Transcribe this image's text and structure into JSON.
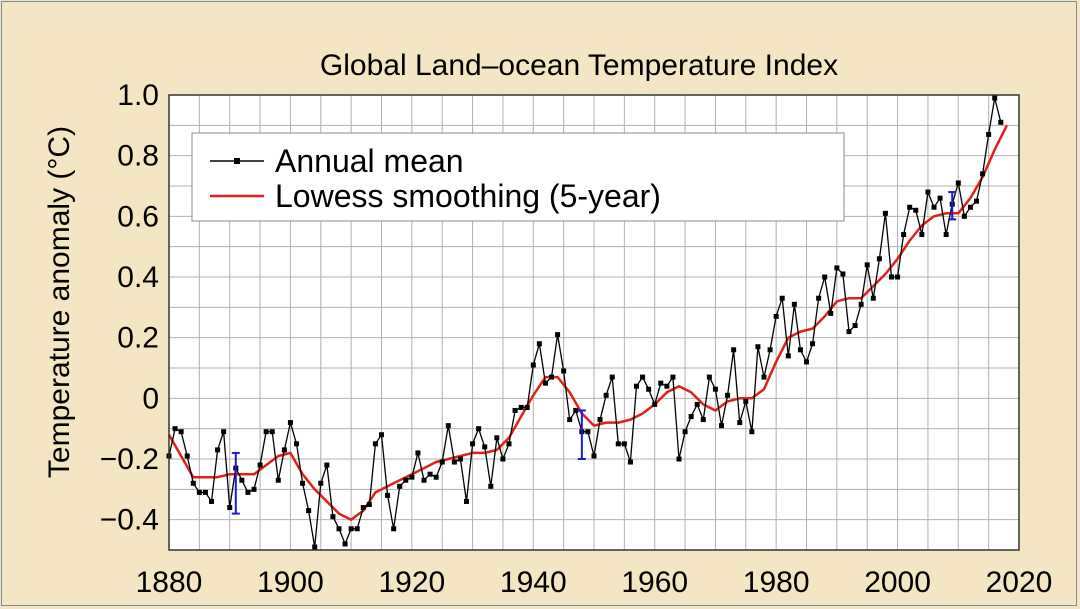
{
  "chart_data": {
    "type": "line",
    "title": "Global Land–ocean Temperature Index",
    "xlabel": "",
    "ylabel": "Temperature anomaly (°C)",
    "xlim": [
      1880,
      2020
    ],
    "ylim": [
      -0.5,
      1.0
    ],
    "xticks": [
      1880,
      1900,
      1920,
      1940,
      1960,
      1980,
      2000,
      2020
    ],
    "yticks": [
      -0.4,
      -0.2,
      0,
      0.2,
      0.4,
      0.6,
      0.8,
      1.0
    ],
    "ytick_labels": [
      "−0.4",
      "−0.2",
      "0",
      "0.2",
      "0.4",
      "0.6",
      "0.8",
      "1.0"
    ],
    "grid": true,
    "legend_position": "top-left",
    "colors": {
      "background": "#f5e6c3",
      "plot_background": "#ffffff",
      "grid": "#b0b0b0",
      "annual": "#000000",
      "smooth": "#e0201b",
      "error_bars": "#1a1adb"
    },
    "series": [
      {
        "name": "Annual mean",
        "x": [
          1880,
          1881,
          1882,
          1883,
          1884,
          1885,
          1886,
          1887,
          1888,
          1889,
          1890,
          1891,
          1892,
          1893,
          1894,
          1895,
          1896,
          1897,
          1898,
          1899,
          1900,
          1901,
          1902,
          1903,
          1904,
          1905,
          1906,
          1907,
          1908,
          1909,
          1910,
          1911,
          1912,
          1913,
          1914,
          1915,
          1916,
          1917,
          1918,
          1919,
          1920,
          1921,
          1922,
          1923,
          1924,
          1925,
          1926,
          1927,
          1928,
          1929,
          1930,
          1931,
          1932,
          1933,
          1934,
          1935,
          1936,
          1937,
          1938,
          1939,
          1940,
          1941,
          1942,
          1943,
          1944,
          1945,
          1946,
          1947,
          1948,
          1949,
          1950,
          1951,
          1952,
          1953,
          1954,
          1955,
          1956,
          1957,
          1958,
          1959,
          1960,
          1961,
          1962,
          1963,
          1964,
          1965,
          1966,
          1967,
          1968,
          1969,
          1970,
          1971,
          1972,
          1973,
          1974,
          1975,
          1976,
          1977,
          1978,
          1979,
          1980,
          1981,
          1982,
          1983,
          1984,
          1985,
          1986,
          1987,
          1988,
          1989,
          1990,
          1991,
          1992,
          1993,
          1994,
          1995,
          1996,
          1997,
          1998,
          1999,
          2000,
          2001,
          2002,
          2003,
          2004,
          2005,
          2006,
          2007,
          2008,
          2009,
          2010,
          2011,
          2012,
          2013,
          2014,
          2015,
          2016,
          2017
        ],
        "y": [
          -0.19,
          -0.1,
          -0.11,
          -0.19,
          -0.28,
          -0.31,
          -0.31,
          -0.34,
          -0.17,
          -0.11,
          -0.36,
          -0.23,
          -0.27,
          -0.31,
          -0.3,
          -0.22,
          -0.11,
          -0.11,
          -0.27,
          -0.17,
          -0.08,
          -0.15,
          -0.28,
          -0.37,
          -0.49,
          -0.28,
          -0.22,
          -0.39,
          -0.43,
          -0.48,
          -0.43,
          -0.43,
          -0.36,
          -0.35,
          -0.15,
          -0.12,
          -0.32,
          -0.43,
          -0.29,
          -0.27,
          -0.26,
          -0.18,
          -0.27,
          -0.25,
          -0.26,
          -0.21,
          -0.09,
          -0.21,
          -0.2,
          -0.34,
          -0.15,
          -0.1,
          -0.16,
          -0.29,
          -0.13,
          -0.2,
          -0.15,
          -0.04,
          -0.03,
          -0.03,
          0.11,
          0.18,
          0.05,
          0.07,
          0.21,
          0.09,
          -0.07,
          -0.04,
          -0.11,
          -0.11,
          -0.19,
          -0.07,
          0.01,
          0.07,
          -0.15,
          -0.15,
          -0.21,
          0.04,
          0.07,
          0.03,
          -0.02,
          0.05,
          0.04,
          0.07,
          -0.2,
          -0.11,
          -0.06,
          -0.02,
          -0.07,
          0.07,
          0.03,
          -0.09,
          0.01,
          0.16,
          -0.08,
          -0.01,
          -0.11,
          0.17,
          0.07,
          0.16,
          0.27,
          0.33,
          0.14,
          0.31,
          0.16,
          0.12,
          0.18,
          0.33,
          0.4,
          0.28,
          0.43,
          0.41,
          0.22,
          0.24,
          0.31,
          0.44,
          0.33,
          0.46,
          0.61,
          0.4,
          0.4,
          0.54,
          0.63,
          0.62,
          0.54,
          0.68,
          0.63,
          0.66,
          0.54,
          0.64,
          0.71,
          0.6,
          0.63,
          0.65,
          0.74,
          0.87,
          0.99,
          0.91
        ]
      },
      {
        "name": "Lowess smoothing (5-year)",
        "x": [
          1880,
          1882,
          1884,
          1886,
          1888,
          1890,
          1892,
          1894,
          1896,
          1898,
          1900,
          1902,
          1904,
          1906,
          1908,
          1910,
          1912,
          1914,
          1916,
          1918,
          1920,
          1922,
          1924,
          1926,
          1928,
          1930,
          1932,
          1934,
          1936,
          1938,
          1940,
          1942,
          1944,
          1946,
          1948,
          1950,
          1952,
          1954,
          1956,
          1958,
          1960,
          1962,
          1964,
          1966,
          1968,
          1970,
          1972,
          1974,
          1976,
          1978,
          1980,
          1982,
          1984,
          1986,
          1988,
          1990,
          1992,
          1994,
          1996,
          1998,
          2000,
          2002,
          2004,
          2006,
          2008,
          2010,
          2012,
          2014,
          2016,
          2018
        ],
        "y": [
          -0.12,
          -0.19,
          -0.26,
          -0.26,
          -0.26,
          -0.25,
          -0.25,
          -0.25,
          -0.22,
          -0.19,
          -0.18,
          -0.25,
          -0.3,
          -0.34,
          -0.38,
          -0.4,
          -0.37,
          -0.31,
          -0.29,
          -0.27,
          -0.25,
          -0.23,
          -0.21,
          -0.2,
          -0.19,
          -0.18,
          -0.18,
          -0.17,
          -0.13,
          -0.06,
          0.01,
          0.07,
          0.07,
          0.02,
          -0.05,
          -0.09,
          -0.08,
          -0.08,
          -0.07,
          -0.05,
          -0.02,
          0.02,
          0.04,
          0.02,
          -0.02,
          -0.04,
          -0.01,
          0.0,
          0.0,
          0.03,
          0.12,
          0.2,
          0.22,
          0.23,
          0.27,
          0.32,
          0.33,
          0.33,
          0.37,
          0.41,
          0.46,
          0.52,
          0.57,
          0.6,
          0.61,
          0.61,
          0.66,
          0.73,
          0.82,
          0.9
        ]
      }
    ],
    "error_bars": [
      {
        "x": 1891,
        "low": -0.38,
        "high": -0.18
      },
      {
        "x": 1948,
        "low": -0.2,
        "high": -0.04
      },
      {
        "x": 2009,
        "low": 0.59,
        "high": 0.68
      }
    ]
  }
}
